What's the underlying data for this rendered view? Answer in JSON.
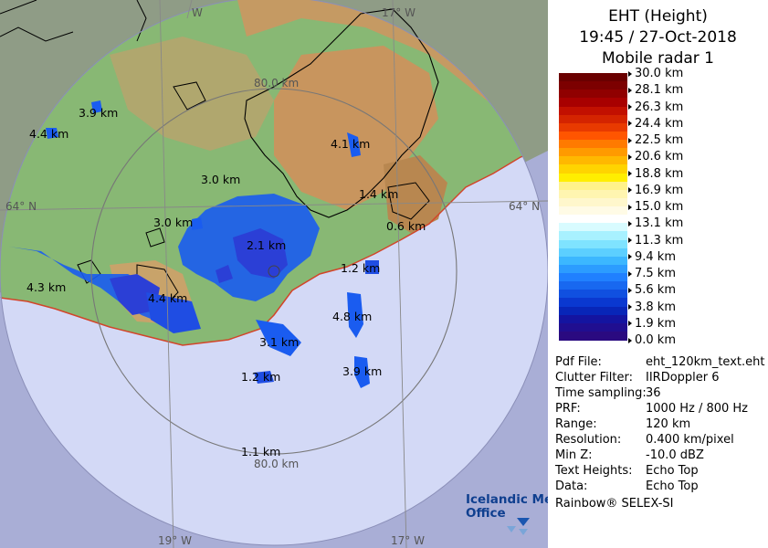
{
  "header": {
    "line1": "EHT (Height)",
    "line2": "19:45 / 27-Oct-2018",
    "line3": "Mobile radar 1"
  },
  "scale": {
    "labels": [
      "30.0 km",
      "28.1 km",
      "26.3 km",
      "24.4 km",
      "22.5 km",
      "20.6 km",
      "18.8 km",
      "16.9 km",
      "15.0 km",
      "13.1 km",
      "11.3 km",
      "9.4 km",
      "7.5 km",
      "5.6 km",
      "3.8 km",
      "1.9 km",
      "0.0 km"
    ],
    "colors": [
      "#6a0000",
      "#7c0000",
      "#900000",
      "#a80000",
      "#c21000",
      "#d42400",
      "#e83a00",
      "#ff5500",
      "#ff7a00",
      "#ff9a00",
      "#ffb800",
      "#ffd400",
      "#ffee00",
      "#fff28a",
      "#fff5b0",
      "#fff7cc",
      "#fffbe6",
      "#ffffff",
      "#d8fbff",
      "#a8f1ff",
      "#7fe3ff",
      "#5ccfff",
      "#3cb7ff",
      "#2c9cff",
      "#2080ff",
      "#1868f0",
      "#1050e0",
      "#0a38d0",
      "#0826b8",
      "#1414a0",
      "#200e90",
      "#2a0a80"
    ]
  },
  "map": {
    "range_rings": [
      "80.0 km",
      "80.0 km"
    ],
    "lat_label_left": "64° N",
    "lat_label_right": "64° N",
    "lon_labels": [
      "W",
      "17° W",
      "19° W",
      "17° W"
    ],
    "echo_labels": [
      "3.9 km",
      "4.4 km",
      "4.1 km",
      "3.0 km",
      "1.4 km",
      "0.6 km",
      "3.0 km",
      "2.1 km",
      "1.2 km",
      "4.3 km",
      "4.4 km",
      "4.8 km",
      "3.1 km",
      "3.9 km",
      "1.2 km",
      "1.1 km"
    ],
    "logo_line1": "Icelandic Met",
    "logo_line2": "Office"
  },
  "info": [
    {
      "key": "Pdf File:",
      "value": "eht_120km_text.eht"
    },
    {
      "key": "Clutter Filter:",
      "value": "IIRDoppler 6"
    },
    {
      "key": "Time sampling:",
      "value": "36"
    },
    {
      "key": "PRF:",
      "value": "1000 Hz / 800 Hz"
    },
    {
      "key": "Range:",
      "value": "120 km"
    },
    {
      "key": "Resolution:",
      "value": "0.400 km/pixel"
    },
    {
      "key": "Min Z:",
      "value": "-10.0 dBZ"
    },
    {
      "key": "Text Heights:",
      "value": "Echo Top"
    },
    {
      "key": "Data:",
      "value": "Echo Top"
    }
  ],
  "footer": "Rainbow® SELEX-SI"
}
